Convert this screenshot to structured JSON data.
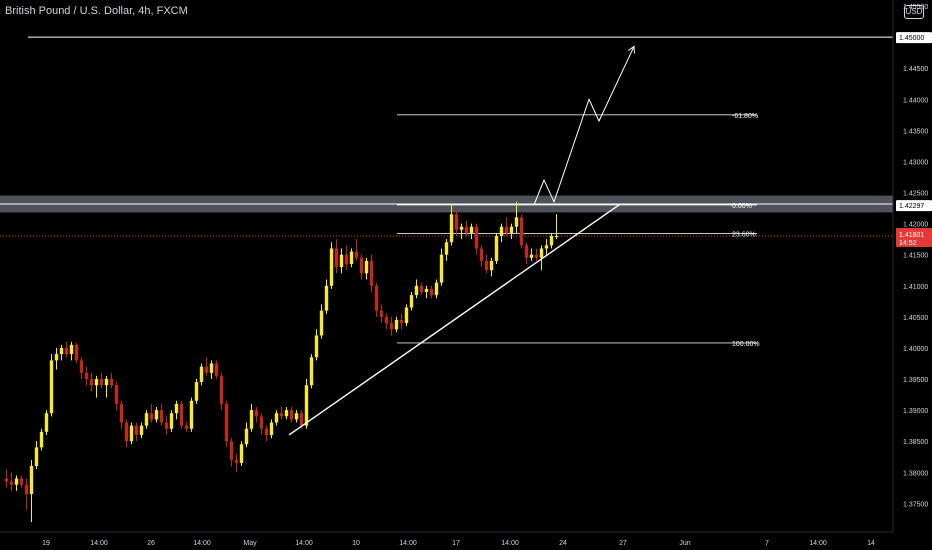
{
  "header": {
    "title": "British Pound / U.S. Dollar, 4h, FXCM",
    "currency": "USD"
  },
  "colors": {
    "background": "#000000",
    "bullish": "#f5ea2c",
    "bearish": "#c1281e",
    "line": "#ffffff",
    "zone": "#5d606b",
    "current_price_line": "#e53935",
    "axis_text": "#d1d4dc"
  },
  "chart_data": {
    "type": "candlestick",
    "title": "British Pound / U.S. Dollar, 4h, FXCM",
    "ylim": [
      1.372,
      1.455
    ],
    "y_ticks": [
      "1.45500",
      "1.44500",
      "1.44000",
      "1.43500",
      "1.43000",
      "1.42500",
      "1.42000",
      "1.41500",
      "1.41000",
      "1.40500",
      "1.40000",
      "1.39500",
      "1.39000",
      "1.38500",
      "1.38000",
      "1.37500"
    ],
    "x_ticks": [
      "19",
      "14:00",
      "26",
      "14:00",
      "May",
      "14:00",
      "10",
      "14:00",
      "17",
      "14:00",
      "24",
      "27",
      "Jun",
      "7",
      "14:00",
      "14"
    ],
    "price_labels": [
      {
        "name": "target-level",
        "value": "1.45000"
      },
      {
        "name": "resistance-level",
        "value": "1.42297"
      },
      {
        "name": "current-price",
        "value": "1.41801",
        "sub": "14:52"
      }
    ],
    "fibonacci": [
      {
        "label": "-61.80%",
        "price": 1.4375
      },
      {
        "label": "0.00%",
        "price": 1.423
      },
      {
        "label": "23.60%",
        "price": 1.4184
      },
      {
        "label": "100.00%",
        "price": 1.4008
      }
    ],
    "horizontal_line": 1.45,
    "resistance_zone": [
      1.4218,
      1.4245
    ],
    "trendline": {
      "from": {
        "bar": 57,
        "price": 1.386
      },
      "to": {
        "bar": 123,
        "price": 1.423
      }
    },
    "projection_path": [
      {
        "bar": 106,
        "price": 1.423
      },
      {
        "bar": 108,
        "price": 1.427
      },
      {
        "bar": 110,
        "price": 1.4235
      },
      {
        "bar": 117,
        "price": 1.44
      },
      {
        "bar": 119,
        "price": 1.4365
      },
      {
        "bar": 126,
        "price": 1.4485
      }
    ],
    "candles": [
      [
        1.379,
        1.3805,
        1.3775,
        1.3785
      ],
      [
        1.3785,
        1.38,
        1.377,
        1.378
      ],
      [
        1.378,
        1.3795,
        1.377,
        1.379
      ],
      [
        1.379,
        1.3795,
        1.3775,
        1.378
      ],
      [
        1.378,
        1.379,
        1.374,
        1.3765
      ],
      [
        1.3765,
        1.382,
        1.372,
        1.381
      ],
      [
        1.381,
        1.385,
        1.3805,
        1.384
      ],
      [
        1.384,
        1.387,
        1.3835,
        1.3865
      ],
      [
        1.3865,
        1.39,
        1.386,
        1.3895
      ],
      [
        1.3895,
        1.399,
        1.389,
        1.398
      ],
      [
        1.398,
        1.4,
        1.3965,
        1.399
      ],
      [
        1.399,
        1.4005,
        1.398,
        1.4
      ],
      [
        1.4,
        1.401,
        1.3985,
        1.399
      ],
      [
        1.399,
        1.401,
        1.398,
        1.4005
      ],
      [
        1.4005,
        1.4008,
        1.3975,
        1.398
      ],
      [
        1.398,
        1.3985,
        1.395,
        1.396
      ],
      [
        1.396,
        1.397,
        1.394,
        1.395
      ],
      [
        1.395,
        1.396,
        1.393,
        1.394
      ],
      [
        1.394,
        1.3955,
        1.392,
        1.395
      ],
      [
        1.395,
        1.396,
        1.3935,
        1.394
      ],
      [
        1.394,
        1.3955,
        1.392,
        1.395
      ],
      [
        1.395,
        1.396,
        1.3935,
        1.394
      ],
      [
        1.394,
        1.3945,
        1.39,
        1.391
      ],
      [
        1.391,
        1.3915,
        1.387,
        1.388
      ],
      [
        1.388,
        1.3885,
        1.384,
        1.385
      ],
      [
        1.385,
        1.388,
        1.3845,
        1.3875
      ],
      [
        1.3875,
        1.388,
        1.385,
        1.386
      ],
      [
        1.386,
        1.388,
        1.3855,
        1.3875
      ],
      [
        1.3875,
        1.39,
        1.387,
        1.3895
      ],
      [
        1.3895,
        1.391,
        1.388,
        1.3885
      ],
      [
        1.3885,
        1.3905,
        1.388,
        1.39
      ],
      [
        1.39,
        1.391,
        1.3875,
        1.388
      ],
      [
        1.388,
        1.389,
        1.386,
        1.387
      ],
      [
        1.387,
        1.39,
        1.3865,
        1.3895
      ],
      [
        1.3895,
        1.3915,
        1.3885,
        1.391
      ],
      [
        1.391,
        1.3915,
        1.387,
        1.3875
      ],
      [
        1.3875,
        1.388,
        1.3865,
        1.387
      ],
      [
        1.387,
        1.392,
        1.3865,
        1.3915
      ],
      [
        1.3915,
        1.395,
        1.391,
        1.3945
      ],
      [
        1.3945,
        1.3975,
        1.394,
        1.397
      ],
      [
        1.397,
        1.3985,
        1.3955,
        1.396
      ],
      [
        1.396,
        1.398,
        1.395,
        1.3975
      ],
      [
        1.3975,
        1.398,
        1.395,
        1.3955
      ],
      [
        1.3955,
        1.396,
        1.39,
        1.391
      ],
      [
        1.391,
        1.3915,
        1.384,
        1.385
      ],
      [
        1.385,
        1.3855,
        1.381,
        1.382
      ],
      [
        1.382,
        1.383,
        1.38,
        1.3815
      ],
      [
        1.3815,
        1.385,
        1.381,
        1.3845
      ],
      [
        1.3845,
        1.388,
        1.384,
        1.387
      ],
      [
        1.387,
        1.391,
        1.3865,
        1.39
      ],
      [
        1.39,
        1.3905,
        1.388,
        1.389
      ],
      [
        1.389,
        1.3895,
        1.386,
        1.387
      ],
      [
        1.387,
        1.3875,
        1.385,
        1.386
      ],
      [
        1.386,
        1.3885,
        1.3855,
        1.388
      ],
      [
        1.388,
        1.39,
        1.3875,
        1.3895
      ],
      [
        1.3895,
        1.3905,
        1.3885,
        1.389
      ],
      [
        1.389,
        1.3905,
        1.3885,
        1.39
      ],
      [
        1.39,
        1.3905,
        1.388,
        1.3885
      ],
      [
        1.3885,
        1.39,
        1.388,
        1.3895
      ],
      [
        1.3895,
        1.39,
        1.387,
        1.3875
      ],
      [
        1.3875,
        1.395,
        1.387,
        1.394
      ],
      [
        1.394,
        1.399,
        1.3935,
        1.3985
      ],
      [
        1.3985,
        1.403,
        1.398,
        1.402
      ],
      [
        1.402,
        1.407,
        1.4015,
        1.406
      ],
      [
        1.406,
        1.411,
        1.4055,
        1.41
      ],
      [
        1.41,
        1.417,
        1.4095,
        1.416
      ],
      [
        1.416,
        1.4175,
        1.412,
        1.413
      ],
      [
        1.413,
        1.416,
        1.412,
        1.415
      ],
      [
        1.415,
        1.4165,
        1.4125,
        1.4135
      ],
      [
        1.4135,
        1.416,
        1.413,
        1.4155
      ],
      [
        1.4155,
        1.4175,
        1.414,
        1.4145
      ],
      [
        1.4145,
        1.415,
        1.411,
        1.412
      ],
      [
        1.412,
        1.4145,
        1.411,
        1.414
      ],
      [
        1.414,
        1.415,
        1.409,
        1.41
      ],
      [
        1.41,
        1.4105,
        1.405,
        1.406
      ],
      [
        1.406,
        1.407,
        1.404,
        1.405
      ],
      [
        1.405,
        1.4055,
        1.403,
        1.404
      ],
      [
        1.404,
        1.405,
        1.402,
        1.403
      ],
      [
        1.403,
        1.405,
        1.4025,
        1.4045
      ],
      [
        1.4045,
        1.4055,
        1.403,
        1.404
      ],
      [
        1.404,
        1.407,
        1.4035,
        1.4065
      ],
      [
        1.4065,
        1.409,
        1.406,
        1.4085
      ],
      [
        1.4085,
        1.411,
        1.408,
        1.41
      ],
      [
        1.41,
        1.4105,
        1.4085,
        1.409
      ],
      [
        1.409,
        1.41,
        1.408,
        1.4095
      ],
      [
        1.4095,
        1.41,
        1.408,
        1.4085
      ],
      [
        1.4085,
        1.411,
        1.408,
        1.4105
      ],
      [
        1.4105,
        1.416,
        1.41,
        1.415
      ],
      [
        1.415,
        1.4175,
        1.414,
        1.417
      ],
      [
        1.417,
        1.423,
        1.4165,
        1.4215
      ],
      [
        1.4215,
        1.4225,
        1.418,
        1.419
      ],
      [
        1.419,
        1.42,
        1.4175,
        1.4195
      ],
      [
        1.4195,
        1.4205,
        1.418,
        1.4185
      ],
      [
        1.4185,
        1.42,
        1.4175,
        1.4195
      ],
      [
        1.4195,
        1.42,
        1.415,
        1.416
      ],
      [
        1.416,
        1.4165,
        1.413,
        1.414
      ],
      [
        1.414,
        1.415,
        1.412,
        1.4125
      ],
      [
        1.4125,
        1.4145,
        1.4115,
        1.414
      ],
      [
        1.414,
        1.4185,
        1.4135,
        1.418
      ],
      [
        1.418,
        1.42,
        1.417,
        1.4195
      ],
      [
        1.4195,
        1.421,
        1.418,
        1.4185
      ],
      [
        1.4185,
        1.42,
        1.4175,
        1.4195
      ],
      [
        1.4195,
        1.4235,
        1.4185,
        1.421
      ],
      [
        1.421,
        1.4215,
        1.416,
        1.4165
      ],
      [
        1.4165,
        1.417,
        1.4135,
        1.4145
      ],
      [
        1.4145,
        1.416,
        1.414,
        1.415
      ],
      [
        1.415,
        1.416,
        1.414,
        1.4145
      ],
      [
        1.4145,
        1.4165,
        1.4125,
        1.416
      ],
      [
        1.416,
        1.4175,
        1.415,
        1.4165
      ],
      [
        1.4165,
        1.4185,
        1.416,
        1.418
      ],
      [
        1.418,
        1.4215,
        1.4175,
        1.418
      ]
    ]
  }
}
